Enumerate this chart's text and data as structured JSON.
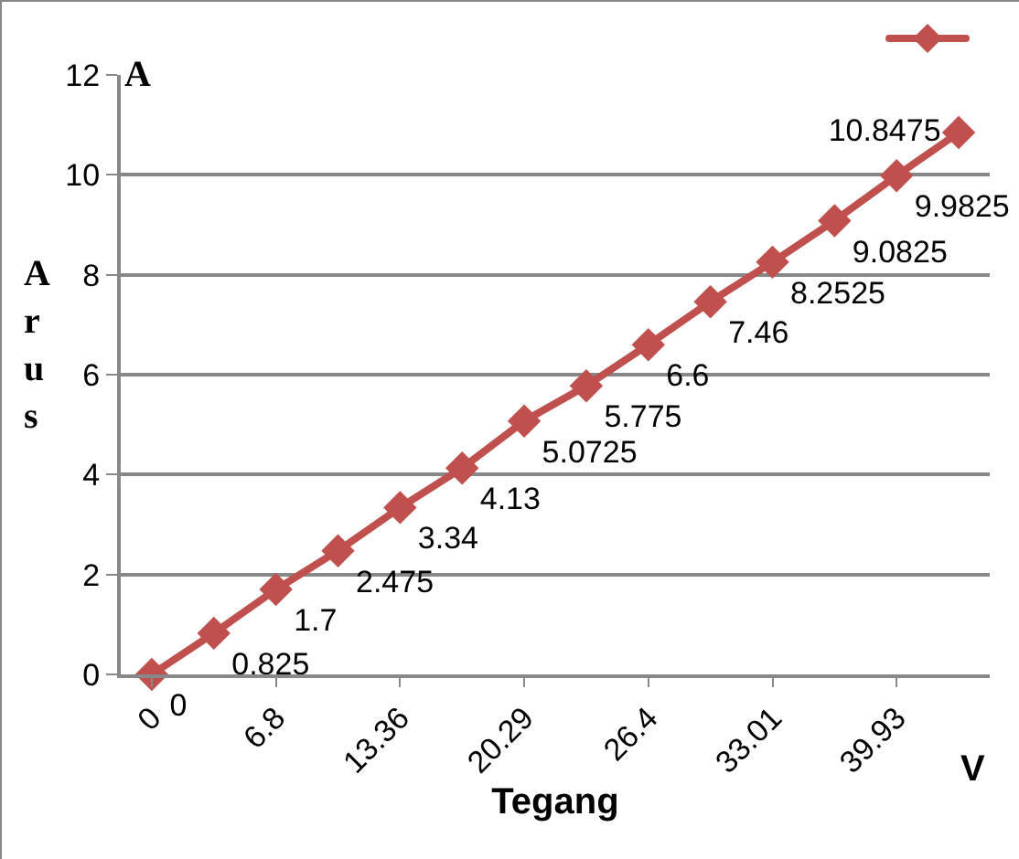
{
  "chart_data": {
    "type": "line",
    "xlabel": "Tegang",
    "ylabel": "Arus",
    "annotations": [
      "A",
      "V"
    ],
    "categories": [
      "0",
      null,
      "6.8",
      null,
      "13.36",
      null,
      "20.29",
      null,
      "26.4",
      null,
      "33.01",
      null,
      "39.93",
      null
    ],
    "series": [
      {
        "color": "#c0504d",
        "values": [
          0,
          0.825,
          1.7,
          2.475,
          3.34,
          4.13,
          5.0725,
          5.775,
          6.6,
          7.46,
          8.2525,
          9.0825,
          9.9825,
          10.8475
        ]
      }
    ],
    "ylim": [
      0,
      12
    ],
    "yticks": [
      0,
      2,
      4,
      6,
      8,
      10,
      12
    ],
    "grid": "y",
    "marker": "diamond",
    "line_style": "solid",
    "data_labels": true
  }
}
